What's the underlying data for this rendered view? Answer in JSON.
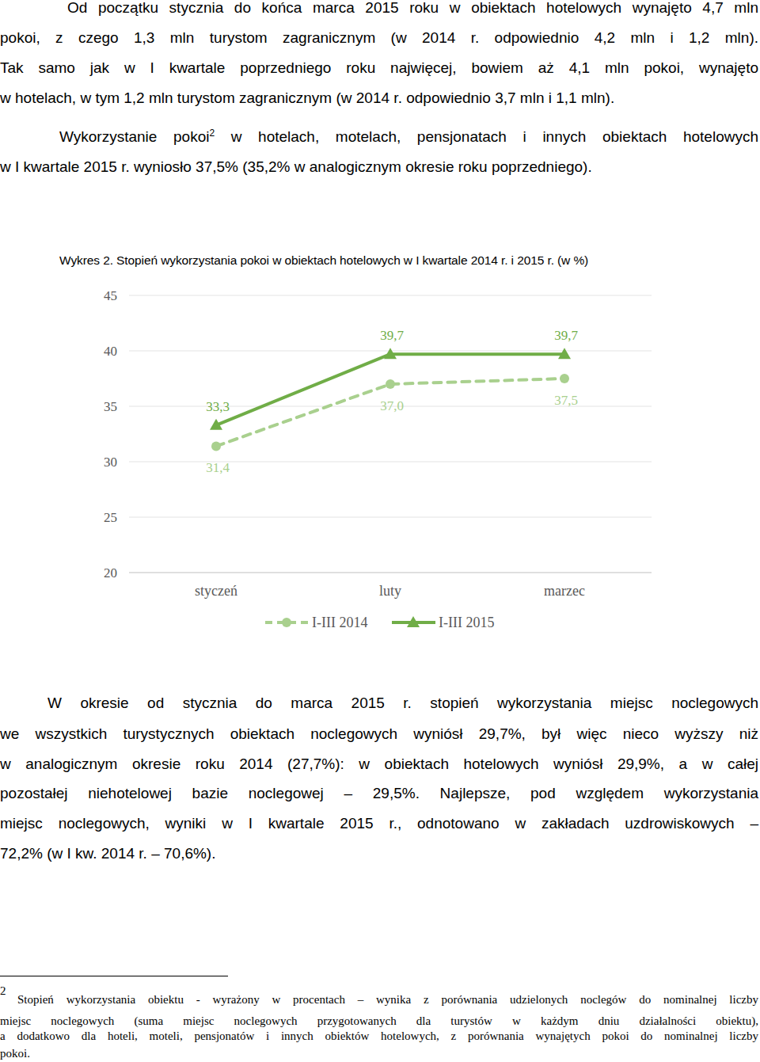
{
  "paragraphs": [
    {
      "lines": [
        "Od początku stycznia do końca marca 2015 roku w obiektach hotelowych wynajęto 4,7 mln",
        "pokoi, z czego 1,3 mln turystom zagranicznym (w 2014 r. odpowiednio 4,2 mln i 1,2 mln).",
        "Tak samo jak w I kwartale poprzedniego roku najwięcej, bowiem aż 4,1 mln pokoi, wynajęto",
        "w hotelach, w tym 1,2 mln turystom zagranicznym (w 2014 r. odpowiednio 3,7 mln i 1,1 mln)."
      ]
    },
    {
      "lines": [
        [
          {
            "text": "Wykorzystanie pokoi"
          },
          {
            "sup": "2"
          },
          {
            "text": " w hotelach, motelach, pensjonatach i innych obiektach hotelowych"
          }
        ],
        "w I kwartale 2015 r. wyniosło 37,5% (35,2% w analogicznym okresie roku poprzedniego)."
      ]
    },
    {
      "lines": [
        "W okresie od stycznia do marca 2015 r. stopień wykorzystania miejsc noclegowych",
        "we wszystkich turystycznych obiektach noclegowych wyniósł 29,7%, był więc nieco wyższy niż",
        "w analogicznym okresie roku 2014 (27,7%): w obiektach hotelowych wyniósł 29,9%, a w całej",
        "pozostałej niehotelowej bazie noclegowej – 29,5%. Najlepsze, pod względem wykorzystania",
        "miejsc noclegowych, wyniki w I kwartale 2015 r., odnotowano w zakładach uzdrowiskowych –",
        "72,2% (w I kw. 2014 r. – 70,6%)."
      ]
    }
  ],
  "chart_data": {
    "type": "line",
    "title": "Wykres 2. Stopień wykorzystania pokoi w obiektach hotelowych w I kwartale 2014 r. i 2015 r. (w %)",
    "categories": [
      "styczeń",
      "luty",
      "marzec"
    ],
    "series": [
      {
        "name": "I-III 2014",
        "color": "#a9d08e",
        "marker": "circle",
        "line_style": "dashed",
        "values": [
          31.4,
          37.0,
          37.5
        ],
        "value_labels": [
          "31,4",
          "37,0",
          "37,5"
        ]
      },
      {
        "name": "I-III 2015",
        "color": "#70ad47",
        "marker": "triangle",
        "line_style": "solid",
        "values": [
          33.3,
          39.7,
          39.7
        ],
        "value_labels": [
          "33,3",
          "39,7",
          "39,7"
        ]
      }
    ],
    "ylim": [
      20,
      45
    ],
    "yticks": [
      20,
      25,
      30,
      35,
      40,
      45
    ],
    "grid": true,
    "data_labels": true,
    "legend": "bottom"
  },
  "footnote": {
    "number": "2",
    "lines": [
      "Stopień wykorzystania obiektu - wyrażony w procentach – wynika z porównania udzielonych noclegów do nominalnej liczby",
      "miejsc noclegowych (suma miejsc noclegowych przygotowanych dla turystów w każdym dniu działalności obiektu),",
      "a dodatkowo dla hoteli, moteli, pensjonatów i innych obiektów hotelowych, z porównania wynajętych pokoi do nominalnej liczby",
      "pokoi."
    ]
  }
}
